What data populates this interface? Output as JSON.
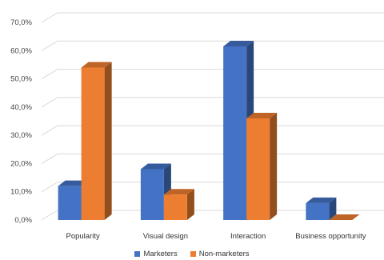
{
  "chart_data": {
    "type": "bar",
    "style": "3d-clustered-column",
    "categories": [
      "Popularity",
      "Visual design",
      "Interaction",
      "Business opportunity"
    ],
    "series": [
      {
        "name": "Marketers",
        "values": [
          12.0,
          18.0,
          61.5,
          6.0
        ],
        "color": "#4472C4"
      },
      {
        "name": "Non-marketers",
        "values": [
          54.0,
          9.0,
          36.0,
          0.0
        ],
        "color": "#ED7D31"
      }
    ],
    "y_ticks": [
      "0,0%",
      "10,0%",
      "20,0%",
      "30,0%",
      "40,0%",
      "50,0%",
      "60,0%",
      "70,0%"
    ],
    "ylim": [
      0,
      70
    ],
    "grid": true,
    "legend_position": "bottom"
  }
}
